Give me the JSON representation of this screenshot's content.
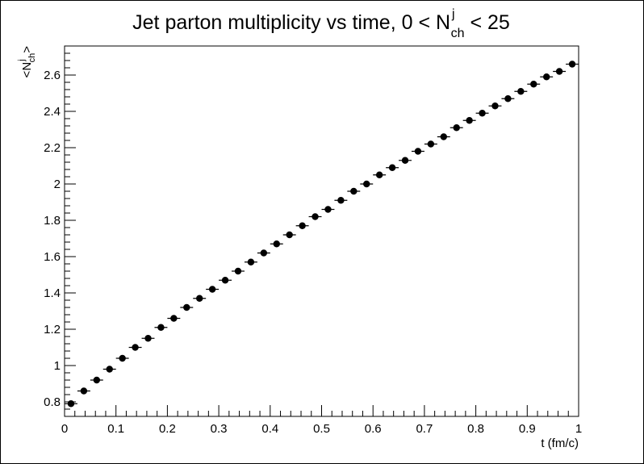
{
  "chart_data": {
    "type": "scatter",
    "title": {
      "main": "Jet parton multiplicity vs time, 0 < N",
      "sup": "j",
      "sub": "ch",
      "tail": " < 25"
    },
    "xlabel": "t (fm/c)",
    "ylabel": {
      "pre": "<N",
      "sup": "j",
      "sub": "ch",
      "post": ">"
    },
    "xlim": [
      0,
      1
    ],
    "ylim": [
      0.72,
      2.76
    ],
    "x_ticks": [
      0,
      0.1,
      0.2,
      0.3,
      0.4,
      0.5,
      0.6,
      0.7,
      0.8,
      0.9,
      1
    ],
    "x_tick_labels": [
      "0",
      "0.1",
      "0.2",
      "0.3",
      "0.4",
      "0.5",
      "0.6",
      "0.7",
      "0.8",
      "0.9",
      "1"
    ],
    "y_ticks": [
      0.8,
      1,
      1.2,
      1.4,
      1.6,
      1.8,
      2,
      2.2,
      2.4,
      2.6
    ],
    "y_tick_labels": [
      "0.8",
      "1",
      "1.2",
      "1.4",
      "1.6",
      "1.8",
      "2",
      "2.2",
      "2.4",
      "2.6"
    ],
    "grid": false,
    "legend": "none",
    "marker_color": "#000000",
    "bin_width": 0.025,
    "series": [
      {
        "x": [
          0.0125,
          0.0375,
          0.0625,
          0.0875,
          0.1125,
          0.1375,
          0.1625,
          0.1875,
          0.2125,
          0.2375,
          0.2625,
          0.2875,
          0.3125,
          0.3375,
          0.3625,
          0.3875,
          0.4125,
          0.4375,
          0.4625,
          0.4875,
          0.5125,
          0.5375,
          0.5625,
          0.5875,
          0.6125,
          0.6375,
          0.6625,
          0.6875,
          0.7125,
          0.7375,
          0.7625,
          0.7875,
          0.8125,
          0.8375,
          0.8625,
          0.8875,
          0.9125,
          0.9375,
          0.9625,
          0.9875
        ],
        "y": [
          0.79,
          0.86,
          0.92,
          0.98,
          1.04,
          1.1,
          1.15,
          1.21,
          1.26,
          1.32,
          1.37,
          1.42,
          1.47,
          1.52,
          1.57,
          1.62,
          1.67,
          1.72,
          1.77,
          1.82,
          1.86,
          1.91,
          1.96,
          2.0,
          2.05,
          2.09,
          2.13,
          2.18,
          2.22,
          2.26,
          2.31,
          2.35,
          2.39,
          2.43,
          2.47,
          2.51,
          2.55,
          2.59,
          2.62,
          2.66
        ]
      }
    ]
  }
}
